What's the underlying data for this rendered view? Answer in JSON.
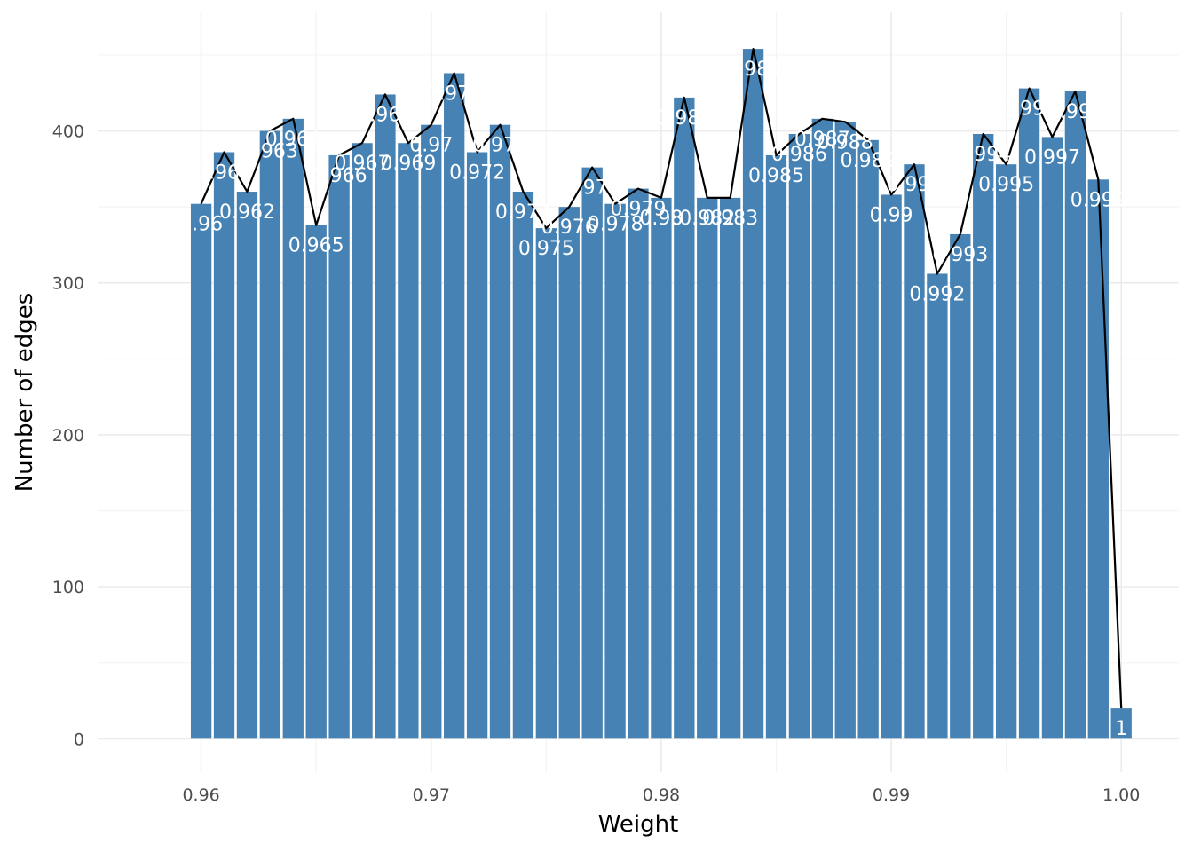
{
  "chart_data": {
    "type": "bar",
    "overlay": "line",
    "bar_color": "#4682b4",
    "line_color": "#000000",
    "x": [
      0.96,
      0.961,
      0.962,
      0.963,
      0.964,
      0.965,
      0.966,
      0.967,
      0.968,
      0.969,
      0.97,
      0.971,
      0.972,
      0.973,
      0.974,
      0.975,
      0.976,
      0.977,
      0.978,
      0.979,
      0.98,
      0.981,
      0.982,
      0.983,
      0.984,
      0.985,
      0.986,
      0.987,
      0.988,
      0.989,
      0.99,
      0.991,
      0.992,
      0.993,
      0.994,
      0.995,
      0.996,
      0.997,
      0.998,
      0.999,
      1.0
    ],
    "values": [
      352,
      386,
      360,
      400,
      408,
      338,
      384,
      392,
      424,
      392,
      404,
      438,
      386,
      404,
      360,
      336,
      350,
      376,
      352,
      362,
      356,
      422,
      356,
      356,
      454,
      384,
      398,
      408,
      406,
      394,
      358,
      378,
      306,
      332,
      398,
      378,
      428,
      396,
      426,
      368,
      20
    ],
    "labels": [
      "0.96",
      "0.961",
      "0.962",
      "0.963",
      "0.964",
      "0.965",
      "0.966",
      "0.967",
      "0.968",
      "0.969",
      "0.97",
      "0.971",
      "0.972",
      "0.973",
      "0.974",
      "0.975",
      "0.976",
      "0.977",
      "0.978",
      "0.979",
      "0.98",
      "0.981",
      "0.982",
      "0.983",
      "0.984",
      "0.985",
      "0.986",
      "0.987",
      "0.988",
      "0.989",
      "0.99",
      "0.991",
      "0.992",
      "0.993",
      "0.994",
      "0.995",
      "0.996",
      "0.997",
      "0.998",
      "0.999",
      "1"
    ],
    "xlabel": "Weight",
    "ylabel": "Number of edges",
    "xlim": [
      0.9555,
      1.0025
    ],
    "ylim": [
      -22,
      478
    ],
    "x_ticks": [
      0.96,
      0.97,
      0.98,
      0.99,
      1.0
    ],
    "x_tick_labels": [
      "0.96",
      "0.97",
      "0.98",
      "0.99",
      "1.00"
    ],
    "y_ticks": [
      0,
      100,
      200,
      300,
      400
    ],
    "y_tick_labels": [
      "0",
      "100",
      "200",
      "300",
      "400"
    ],
    "grid": true,
    "legend": "none"
  }
}
